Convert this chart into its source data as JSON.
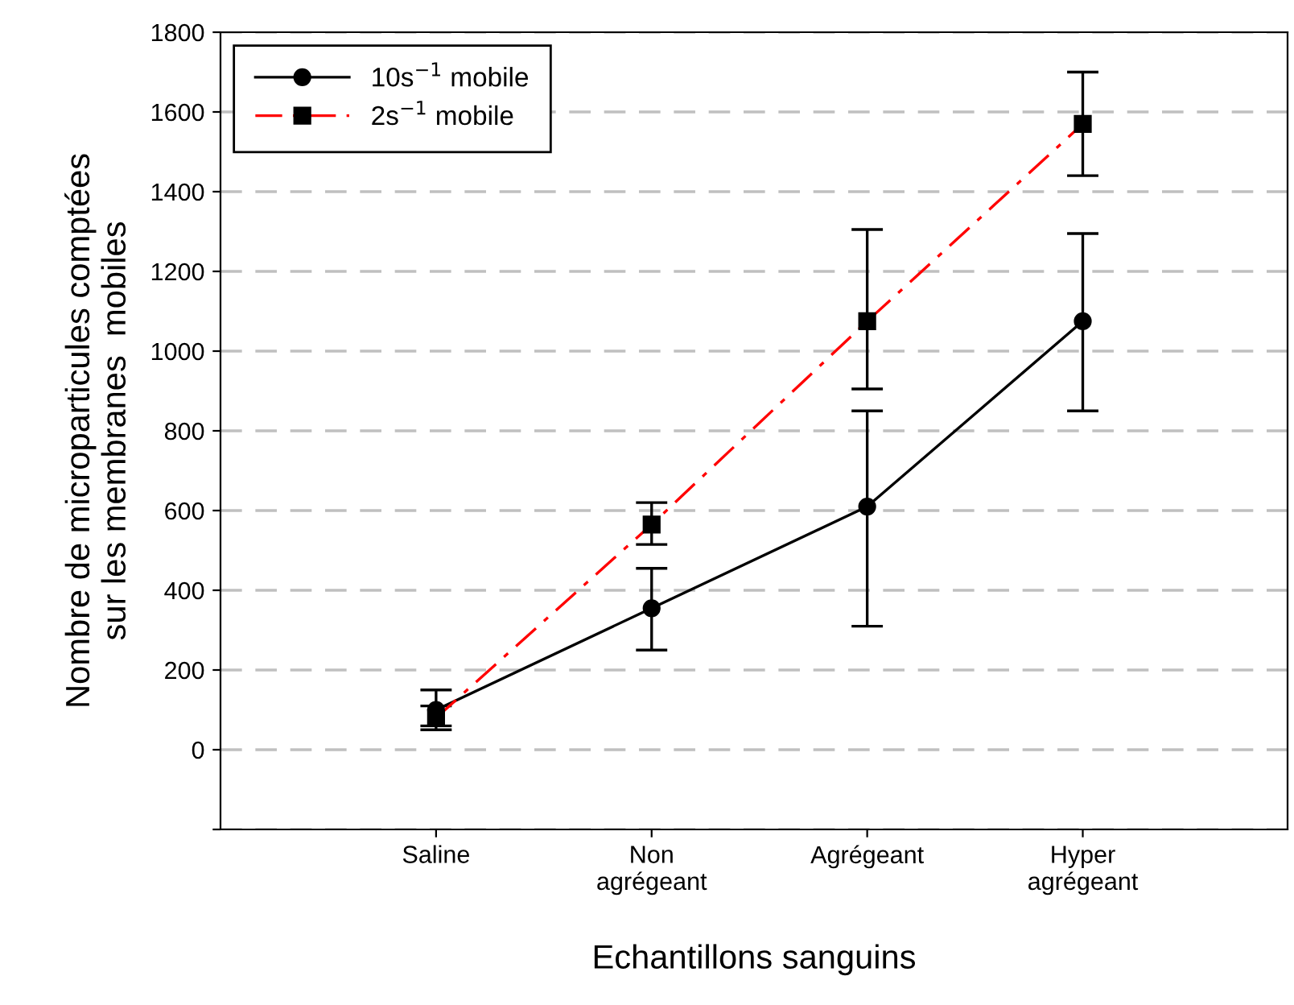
{
  "chart_data": {
    "type": "line",
    "xlabel": "Echantillons sanguins",
    "ylabel": "Nombre de microparticules comptées\nsur les membranes  mobiles",
    "categories": [
      "Saline",
      "Non\nagrégeant",
      "Agrégeant",
      "Hyper\nagrégeant"
    ],
    "series": [
      {
        "name": "10s$^{−1}$ mobile",
        "color": "#000000",
        "marker": "circle",
        "line_style": "solid",
        "values": [
          100,
          355,
          610,
          1075
        ],
        "errors": [
          [
            60,
            150
          ],
          [
            250,
            455
          ],
          [
            310,
            850
          ],
          [
            850,
            1295
          ]
        ]
      },
      {
        "name": "2s$^{−1}$ mobile",
        "color": "#ff0000",
        "marker": "square",
        "line_style": "dashdot",
        "values": [
          80,
          565,
          1075,
          1570
        ],
        "errors": [
          [
            50,
            110
          ],
          [
            515,
            620
          ],
          [
            905,
            1305
          ],
          [
            1440,
            1700
          ]
        ]
      }
    ],
    "ylim": [
      -200,
      1800
    ],
    "yticks": [
      {
        "value": -200,
        "label": null
      },
      0,
      200,
      400,
      600,
      800,
      1000,
      1200,
      1400,
      1600,
      1800
    ],
    "grid": "y",
    "legend": "top left"
  }
}
